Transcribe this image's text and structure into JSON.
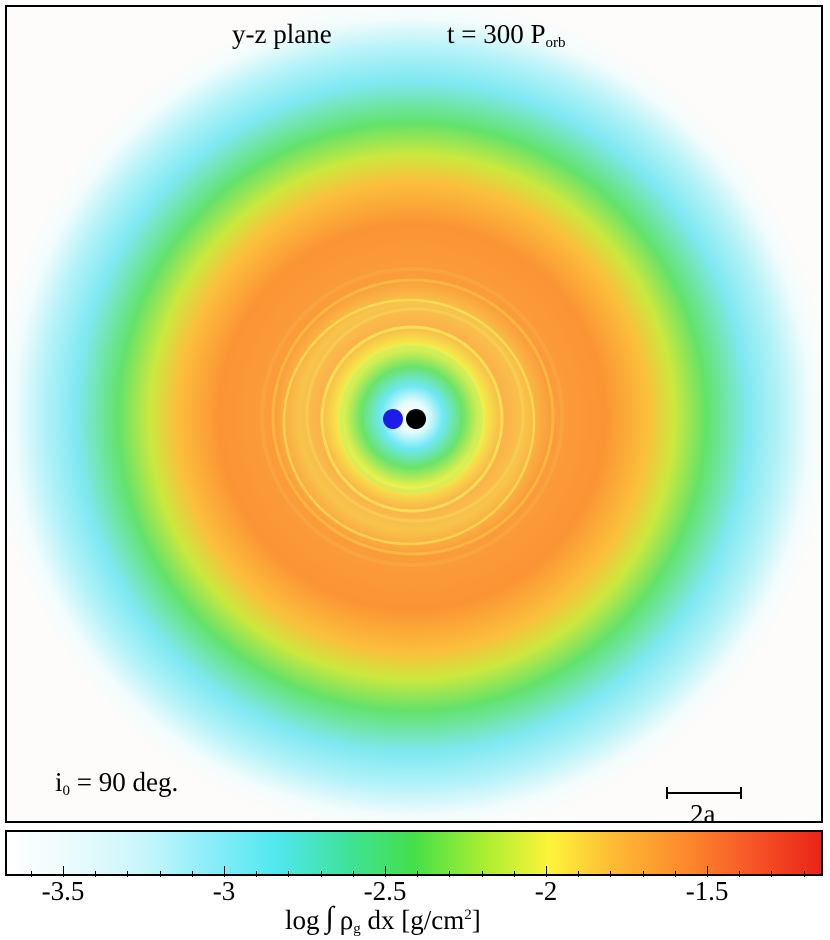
{
  "figure": {
    "plane_label": "y-z plane",
    "time_prefix": "t = 300 P",
    "time_sub": "orb",
    "inclination_i": "i",
    "inclination_sub": "0",
    "inclination_rest": " = 90 deg.",
    "scale_label": "2a"
  },
  "colorbar": {
    "title_prefix": "log",
    "title_integral": "∫",
    "title_rho": "ρ",
    "title_rho_sub": "g",
    "title_rest": " dx [g/cm",
    "title_sup": "2",
    "title_end": "]",
    "ticks": [
      "-3.5",
      "-3",
      "-2.5",
      "-2",
      "-1.5"
    ],
    "range": [
      -3.68,
      -1.14
    ],
    "colors": [
      "#ffffff",
      "#eafbfd",
      "#c9f6fb",
      "#8aedf9",
      "#4fe7ee",
      "#3fe29a",
      "#44e04a",
      "#a6ee32",
      "#fdf43a",
      "#fdb734",
      "#fd8a2c",
      "#f65527",
      "#ea2418"
    ]
  },
  "stars": [
    {
      "name": "blue-star",
      "color": "#1d1de8"
    },
    {
      "name": "black-star",
      "color": "#000000"
    }
  ]
}
